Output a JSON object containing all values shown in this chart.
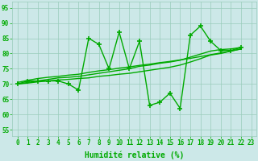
{
  "xlabel": "Humidité relative (%)",
  "ylabel_ticks": [
    55,
    60,
    65,
    70,
    75,
    80,
    85,
    90,
    95
  ],
  "xlim": [
    -0.5,
    23.5
  ],
  "ylim": [
    53,
    97
  ],
  "bg_color": "#cce8e8",
  "grid_color": "#99ccbb",
  "line_color": "#00aa00",
  "marker_color": "#00aa00",
  "line_width": 1.0,
  "series": {
    "main": [
      70,
      71,
      71,
      71,
      71,
      70,
      68,
      85,
      83,
      75,
      87,
      75,
      84,
      63,
      64,
      67,
      62,
      86,
      89,
      84,
      81,
      81,
      82
    ],
    "trend1": [
      70.5,
      71.2,
      71.8,
      72.2,
      72.5,
      72.9,
      73.2,
      73.8,
      74.3,
      74.7,
      75.2,
      75.6,
      76.1,
      76.5,
      77.0,
      77.4,
      77.9,
      78.4,
      79.0,
      79.6,
      80.2,
      80.8,
      81.5
    ],
    "trend2": [
      70.0,
      70.5,
      71.0,
      71.5,
      72.0,
      72.2,
      72.5,
      73.0,
      73.5,
      74.0,
      74.5,
      75.0,
      75.8,
      76.2,
      76.8,
      77.2,
      77.8,
      78.8,
      79.8,
      80.8,
      81.3,
      81.5,
      82.0
    ],
    "trend3": [
      70.0,
      70.3,
      70.7,
      71.0,
      71.3,
      71.5,
      71.8,
      72.0,
      72.5,
      72.8,
      73.2,
      73.5,
      74.0,
      74.5,
      75.0,
      75.5,
      76.2,
      77.2,
      78.3,
      79.5,
      80.0,
      80.8,
      81.5
    ]
  },
  "xticks": [
    0,
    1,
    2,
    3,
    4,
    5,
    6,
    7,
    8,
    9,
    10,
    11,
    12,
    13,
    14,
    15,
    16,
    17,
    18,
    19,
    20,
    21,
    22,
    23
  ],
  "xlabel_fontsize": 7,
  "tick_fontsize": 5.5
}
